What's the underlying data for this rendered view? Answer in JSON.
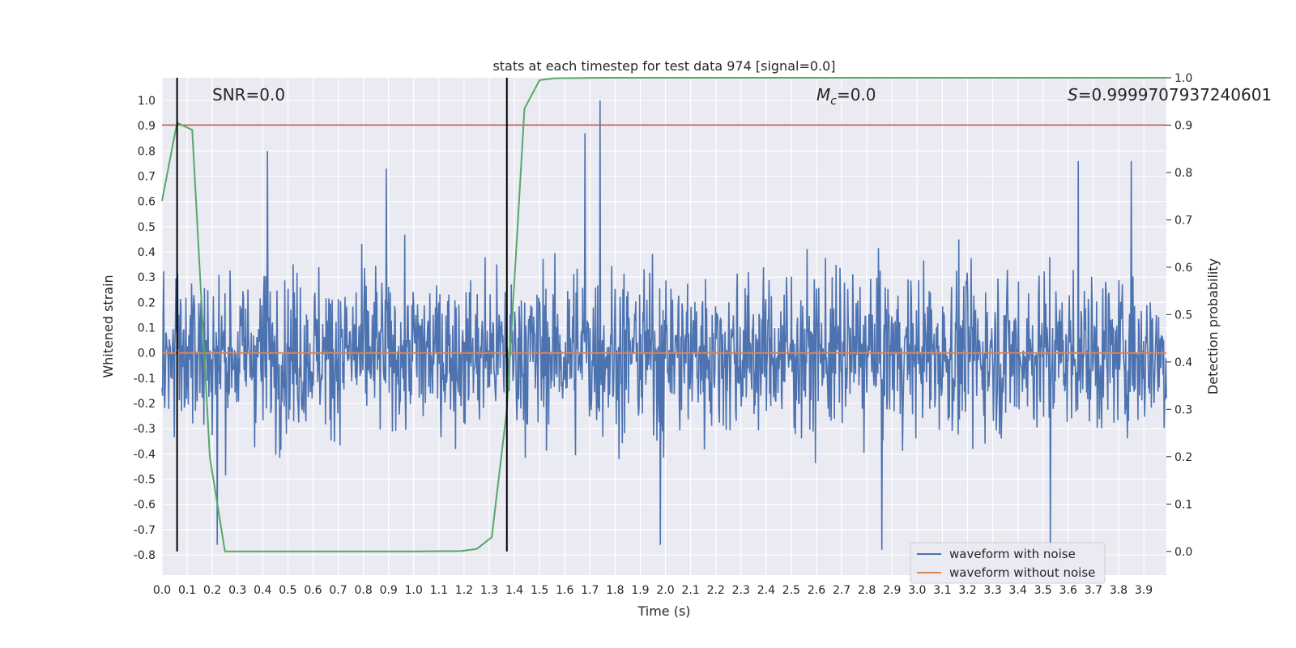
{
  "chart_data": {
    "type": "line",
    "title": "stats at each timestep for test data 974 [signal=0.0]",
    "xlabel": "Time (s)",
    "ylabel": "Whitened strain",
    "y2label": "Detection probability",
    "xlim": [
      0.0,
      3.99
    ],
    "ylim": [
      -0.88,
      1.09
    ],
    "y2lim": [
      -0.05,
      1.0
    ],
    "xticks": [
      "0.0",
      "0.1",
      "0.2",
      "0.3",
      "0.4",
      "0.5",
      "0.6",
      "0.7",
      "0.8",
      "0.9",
      "1.0",
      "1.1",
      "1.2",
      "1.3",
      "1.4",
      "1.5",
      "1.6",
      "1.7",
      "1.8",
      "1.9",
      "2.0",
      "2.1",
      "2.2",
      "2.3",
      "2.4",
      "2.5",
      "2.6",
      "2.7",
      "2.8",
      "2.9",
      "3.0",
      "3.1",
      "3.2",
      "3.3",
      "3.4",
      "3.5",
      "3.6",
      "3.7",
      "3.8",
      "3.9"
    ],
    "yticks": [
      "-0.8",
      "-0.7",
      "-0.6",
      "-0.5",
      "-0.4",
      "-0.3",
      "-0.2",
      "-0.1",
      "0.0",
      "0.1",
      "0.2",
      "0.3",
      "0.4",
      "0.5",
      "0.6",
      "0.7",
      "0.8",
      "0.9",
      "1.0"
    ],
    "y2ticks": [
      "0.0",
      "0.1",
      "0.2",
      "0.3",
      "0.4",
      "0.5",
      "0.6",
      "0.7",
      "0.8",
      "0.9",
      "1.0"
    ],
    "grid": true,
    "legend_position": "lower-right",
    "annotations": {
      "snr": "SNR=0.0",
      "mc": "M_c=0.0",
      "mc_symbol": "M",
      "mc_subscript": "c",
      "mc_value": "=0.0",
      "s_symbol": "S",
      "s_value": "=0.9999707937240601"
    },
    "series": [
      {
        "name": "waveform with noise",
        "color": "#4c72b0",
        "note": "dense noise roughly spanning -0.78 to 1.0 across 0-3.99 s",
        "envelope": {
          "mean": 0.0,
          "spread": 0.22,
          "min": -0.78,
          "max": 1.0
        },
        "spikes": [
          {
            "x": 0.42,
            "y": 0.8
          },
          {
            "x": 0.89,
            "y": 0.73
          },
          {
            "x": 1.68,
            "y": 0.87
          },
          {
            "x": 1.74,
            "y": 1.0
          },
          {
            "x": 3.64,
            "y": 0.76
          },
          {
            "x": 3.85,
            "y": 0.76
          },
          {
            "x": 0.22,
            "y": -0.76
          },
          {
            "x": 2.86,
            "y": -0.78
          },
          {
            "x": 3.53,
            "y": -0.78
          },
          {
            "x": 1.98,
            "y": -0.76
          }
        ]
      },
      {
        "name": "waveform without noise",
        "color": "#dd8452",
        "x": [
          0.0,
          3.99
        ],
        "y": [
          0.0,
          0.0
        ]
      },
      {
        "color": "#55a868",
        "axis": "right",
        "x": [
          0.0,
          0.06,
          0.12,
          0.19,
          0.25,
          0.5,
          1.0,
          1.19,
          1.25,
          1.31,
          1.37,
          1.44,
          1.5,
          1.56,
          1.75,
          2.5,
          3.0,
          3.99
        ],
        "y": [
          0.74,
          0.905,
          0.89,
          0.2,
          0.0,
          0.0,
          0.0,
          0.001,
          0.005,
          0.03,
          0.3,
          0.935,
          0.995,
          0.999,
          1.0,
          1.0,
          1.0,
          1.0
        ]
      }
    ],
    "threshold_line": {
      "axis": "right",
      "y": 0.9,
      "color": "#c44e52"
    },
    "vertical_lines": [
      {
        "x": 0.06,
        "color": "#000000"
      },
      {
        "x": 1.37,
        "color": "#000000"
      }
    ]
  }
}
